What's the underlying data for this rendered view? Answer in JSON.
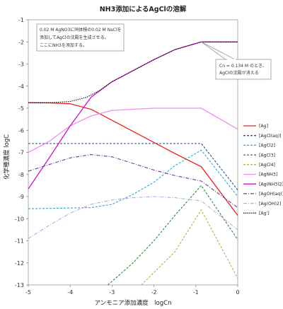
{
  "chart_data": {
    "type": "line",
    "title": "NH3添加によるAgClの溶解",
    "xlabel": "アンモニア添加濃度　logCn",
    "ylabel": "化学種濃度 logC",
    "xlim": [
      -5,
      0
    ],
    "ylim": [
      -13,
      -1
    ],
    "x_ticks": [
      "-5",
      "-4",
      "-3",
      "-2",
      "-1",
      "0"
    ],
    "y_ticks": [
      "-1",
      "-2",
      "-3",
      "-4",
      "-5",
      "-6",
      "-7",
      "-8",
      "-9",
      "-10",
      "-11",
      "-12",
      "-13"
    ],
    "grid": "horizontal",
    "legend_position": "right",
    "annotations": [
      {
        "lines": [
          "0.02 M AgNO3に同体積の0.02 M NaClを",
          "添加してAgClの沈殿を生成させる。",
          "ここにNH3を添加する。"
        ]
      },
      {
        "lines": [
          "Cn = 0.134 M のとき、",
          "AgClの沈殿が消える"
        ],
        "arrow_to": [
          -0.87,
          -2.0
        ]
      }
    ],
    "series": [
      {
        "name": "[Ag]",
        "color": "#ee1c1c",
        "dash": "solid",
        "x": [
          -5,
          -4.5,
          -4,
          -3.5,
          -3,
          -2.5,
          -2,
          -1.5,
          -0.87,
          0
        ],
        "y": [
          -4.75,
          -4.76,
          -4.8,
          -5.05,
          -5.55,
          -6.05,
          -6.55,
          -7.05,
          -7.65,
          -9.85
        ]
      },
      {
        "name": "[AgCl(aq)]",
        "color": "#1f4e9a",
        "dash": "dash",
        "x": [
          -5,
          -0.87,
          0
        ],
        "y": [
          -6.6,
          -6.6,
          -8.7
        ]
      },
      {
        "name": "[AgCl2]",
        "color": "#27a8d8",
        "dash": "dash",
        "x": [
          -5,
          -3.5,
          -3,
          -2.5,
          -2,
          -1.5,
          -0.87,
          0
        ],
        "y": [
          -9.55,
          -9.5,
          -9.35,
          -8.9,
          -8.35,
          -7.6,
          -6.9,
          -9.0
        ]
      },
      {
        "name": "[AgCl3]",
        "color": "#1f8a3a",
        "dash": "dash",
        "x": [
          -3.1,
          -2.5,
          -2,
          -1.5,
          -0.87,
          0
        ],
        "y": [
          -13,
          -12.0,
          -11.0,
          -9.85,
          -8.5,
          -10.95
        ]
      },
      {
        "name": "[AgCl4]",
        "color": "#8bc34a",
        "dash": "dash",
        "x": [
          -2.3,
          -1.5,
          -0.87,
          0
        ],
        "y": [
          -13,
          -11.5,
          -9.6,
          -12.7
        ]
      },
      {
        "name": "[AgNH3]",
        "color": "#f08cf0",
        "dash": "solid",
        "x": [
          -5,
          -4.5,
          -4,
          -3.5,
          -3,
          -2,
          -0.87,
          0
        ],
        "y": [
          -7.0,
          -6.5,
          -5.8,
          -5.35,
          -5.1,
          -5.0,
          -5.0,
          -5.95
        ]
      },
      {
        "name": "[Ag(NH3)2]",
        "color": "#d10fd1",
        "dash": "solid",
        "x": [
          -5,
          -4.5,
          -4,
          -3.5,
          -3,
          -2.5,
          -2,
          -1.5,
          -0.87,
          0
        ],
        "y": [
          -8.65,
          -7.25,
          -5.8,
          -4.5,
          -3.8,
          -3.3,
          -2.8,
          -2.35,
          -2.0,
          -2.0
        ]
      },
      {
        "name": "[AgOH(aq)]",
        "color": "#6a3d9a",
        "dash": "dashdot",
        "x": [
          -5,
          -4.5,
          -4,
          -3.5,
          -3,
          -2.5,
          -2,
          -1.5,
          -0.87,
          0
        ],
        "y": [
          -7.85,
          -7.55,
          -7.25,
          -7.1,
          -7.2,
          -7.5,
          -7.8,
          -8.05,
          -8.3,
          -9.5
        ]
      },
      {
        "name": "[Ag(OH)2]",
        "color": "#b7a8e0",
        "dash": "dashdot",
        "x": [
          -5,
          -4.5,
          -4,
          -3.5,
          -3,
          -2.5,
          -2,
          -1.5,
          -0.87,
          0
        ],
        "y": [
          -10.9,
          -10.3,
          -9.75,
          -9.35,
          -9.15,
          -9.05,
          -9.0,
          -9.05,
          -9.2,
          -10.5
        ]
      },
      {
        "name": "[Ag']",
        "color": "#000000",
        "dash": "dot",
        "x": [
          -5,
          -4.5,
          -4,
          -3.6,
          -3.3,
          -3,
          -2.5,
          -2,
          -1.5,
          -0.87,
          0
        ],
        "y": [
          -4.75,
          -4.75,
          -4.7,
          -4.5,
          -4.2,
          -3.8,
          -3.3,
          -2.8,
          -2.35,
          -2.0,
          -2.0
        ]
      }
    ]
  }
}
